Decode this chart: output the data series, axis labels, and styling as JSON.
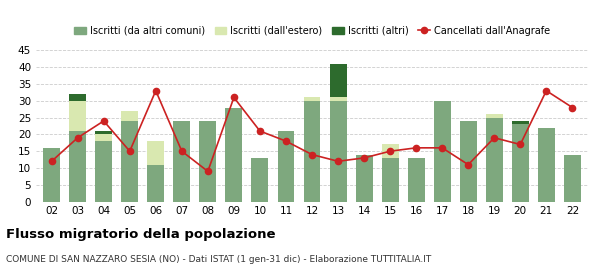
{
  "years": [
    "02",
    "03",
    "04",
    "05",
    "06",
    "07",
    "08",
    "09",
    "10",
    "11",
    "12",
    "13",
    "14",
    "15",
    "16",
    "17",
    "18",
    "19",
    "20",
    "21",
    "22"
  ],
  "iscritti_altri_comuni": [
    16,
    21,
    18,
    24,
    11,
    24,
    24,
    28,
    13,
    21,
    30,
    30,
    14,
    13,
    13,
    30,
    24,
    25,
    23,
    22,
    14
  ],
  "iscritti_estero": [
    0,
    9,
    2,
    3,
    7,
    0,
    0,
    0,
    0,
    0,
    1,
    1,
    0,
    4,
    0,
    0,
    0,
    1,
    0,
    0,
    0
  ],
  "iscritti_altri": [
    0,
    2,
    1,
    0,
    0,
    0,
    0,
    0,
    0,
    0,
    0,
    10,
    0,
    0,
    0,
    0,
    0,
    0,
    1,
    0,
    0
  ],
  "cancellati": [
    12,
    19,
    24,
    15,
    33,
    15,
    9,
    31,
    21,
    18,
    14,
    12,
    13,
    15,
    16,
    16,
    11,
    19,
    17,
    33,
    28
  ],
  "color_altri_comuni": "#7ea87e",
  "color_estero": "#d9e8b0",
  "color_altri": "#2d6b2d",
  "color_cancellati": "#cc2222",
  "bg_color": "#ffffff",
  "grid_color": "#cccccc",
  "ylim": [
    0,
    45
  ],
  "yticks": [
    0,
    5,
    10,
    15,
    20,
    25,
    30,
    35,
    40,
    45
  ],
  "title": "Flusso migratorio della popolazione",
  "subtitle": "COMUNE DI SAN NAZZARO SESIA (NO) - Dati ISTAT (1 gen-31 dic) - Elaborazione TUTTITALIA.IT",
  "legend_labels": [
    "Iscritti (da altri comuni)",
    "Iscritti (dall'estero)",
    "Iscritti (altri)",
    "Cancellati dall'Anagrafe"
  ]
}
